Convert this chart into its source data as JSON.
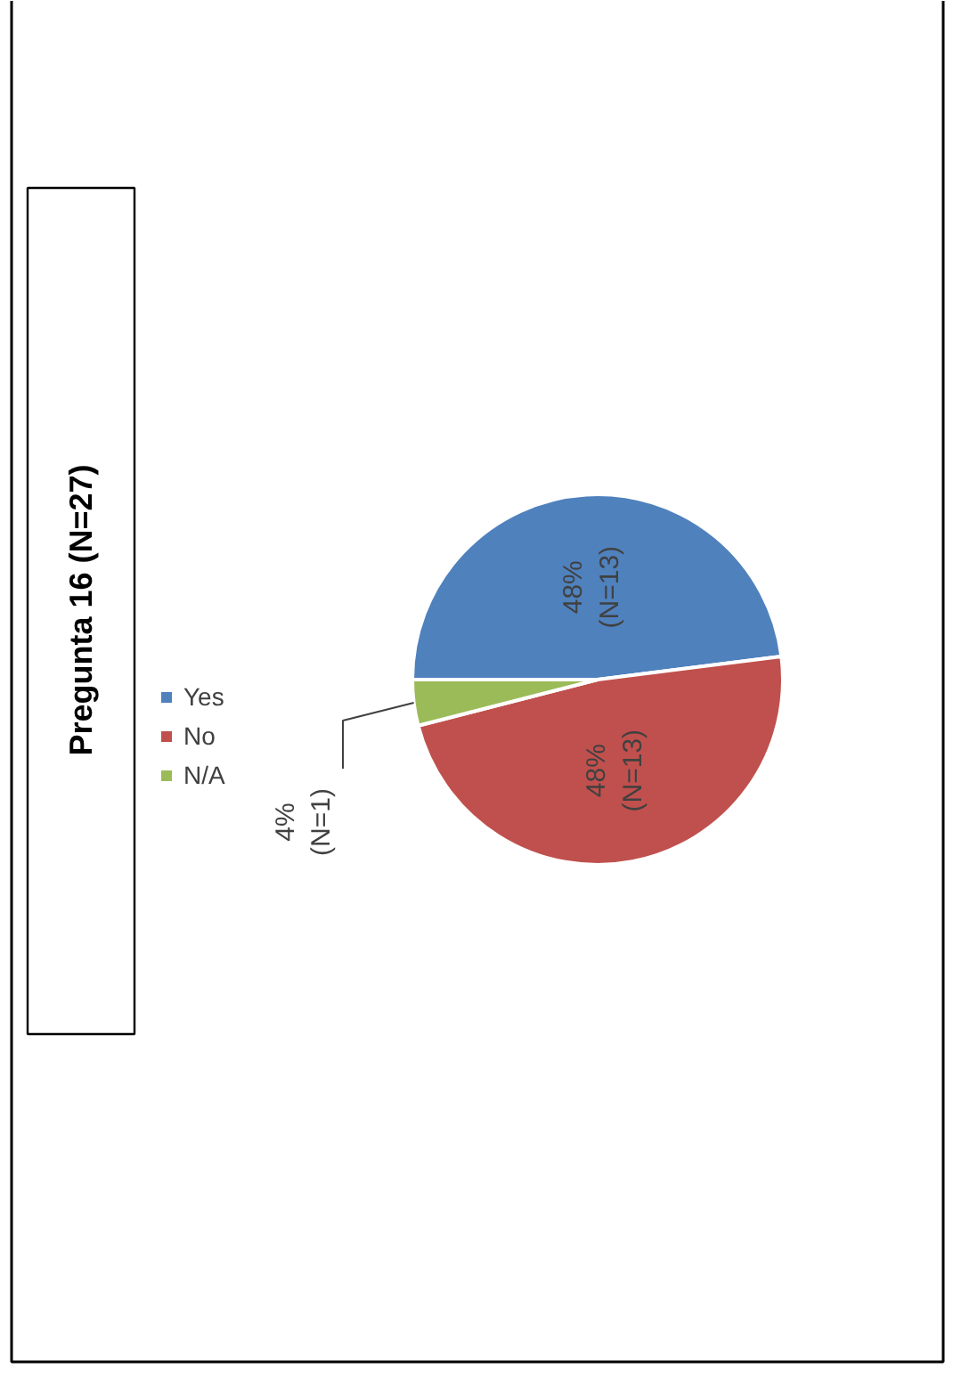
{
  "chart_data": {
    "type": "pie",
    "title": "Pregunta 16 (N=27)",
    "categories": [
      "Yes",
      "No",
      "N/A"
    ],
    "values": [
      48,
      48,
      4
    ],
    "colors": [
      "#4f81bd",
      "#c0504d",
      "#9bbb59"
    ],
    "value_labels": [
      "48%\n(N=13)",
      "48%\n(N=13)",
      "4%\n(N=1)"
    ],
    "legend": "left"
  }
}
